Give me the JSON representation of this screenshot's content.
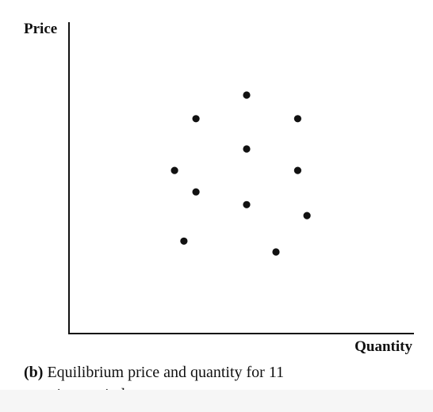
{
  "chart_data": {
    "type": "scatter",
    "title": "",
    "xlabel": "Quantity",
    "ylabel": "Price",
    "xlim": [
      0,
      100
    ],
    "ylim": [
      0,
      100
    ],
    "grid": false,
    "axis_color": "#111111",
    "point_color": "#111111",
    "points": [
      {
        "x": 51.5,
        "y": 76.6
      },
      {
        "x": 36.8,
        "y": 69.0
      },
      {
        "x": 66.3,
        "y": 69.0
      },
      {
        "x": 51.5,
        "y": 59.3
      },
      {
        "x": 30.6,
        "y": 52.4
      },
      {
        "x": 66.3,
        "y": 52.4
      },
      {
        "x": 36.8,
        "y": 45.5
      },
      {
        "x": 51.5,
        "y": 41.4
      },
      {
        "x": 69.0,
        "y": 37.9
      },
      {
        "x": 33.3,
        "y": 29.7
      },
      {
        "x": 60.0,
        "y": 26.2
      }
    ]
  },
  "caption": {
    "label": "(b)",
    "line1": "Equilibrium price and quantity for 11",
    "line2": "time periods"
  }
}
